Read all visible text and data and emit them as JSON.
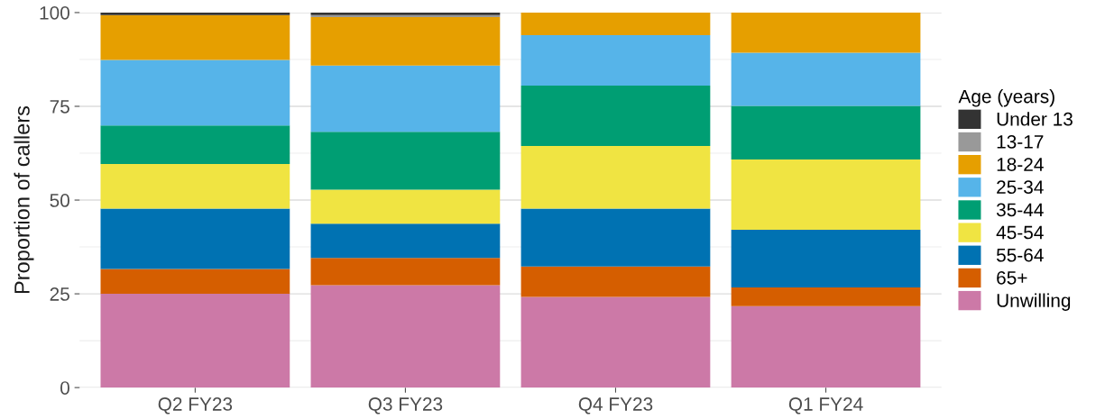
{
  "chart_data": {
    "type": "bar",
    "stacked": true,
    "ylabel": "Proportion of callers",
    "legend_title": "Age (years)",
    "legend": "right",
    "grid": "y",
    "categories": [
      "Q2 FY23",
      "Q3 FY23",
      "Q4 FY23",
      "Q1 FY24"
    ],
    "ylim": [
      0,
      100
    ],
    "yticks": [
      0,
      25,
      50,
      75,
      100
    ],
    "series": [
      {
        "name": "Unwilling",
        "color": "#cc79a7",
        "values": [
          25.0,
          27.3,
          24.2,
          21.7
        ]
      },
      {
        "name": "65+",
        "color": "#d55e00",
        "values": [
          6.6,
          7.3,
          8.1,
          5.0
        ]
      },
      {
        "name": "55-64",
        "color": "#0072b2",
        "values": [
          16.1,
          9.1,
          15.4,
          15.4
        ]
      },
      {
        "name": "45-54",
        "color": "#f0e442",
        "values": [
          11.9,
          9.1,
          16.7,
          18.7
        ]
      },
      {
        "name": "35-44",
        "color": "#009e73",
        "values": [
          10.3,
          15.4,
          16.1,
          14.3
        ]
      },
      {
        "name": "25-34",
        "color": "#56b4e9",
        "values": [
          17.5,
          17.7,
          13.5,
          14.2
        ]
      },
      {
        "name": "18-24",
        "color": "#e69f00",
        "values": [
          11.9,
          12.9,
          6.0,
          10.7
        ]
      },
      {
        "name": "13-17",
        "color": "#999999",
        "values": [
          0,
          0.5,
          0,
          0
        ]
      },
      {
        "name": "Under 13",
        "color": "#333333",
        "values": [
          0.7,
          0.7,
          0,
          0
        ]
      }
    ]
  }
}
